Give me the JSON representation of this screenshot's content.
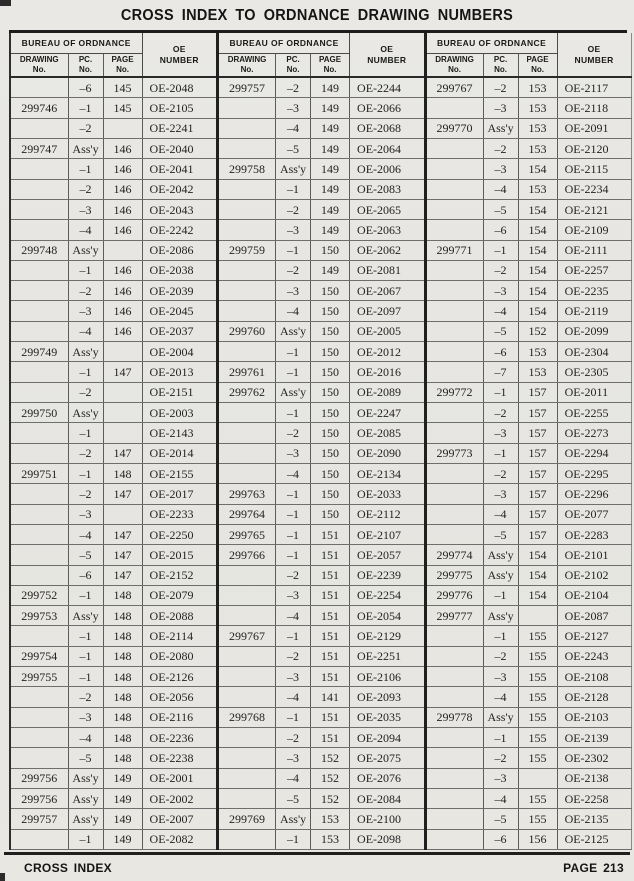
{
  "title": "CROSS INDEX TO ORDNANCE DRAWING NUMBERS",
  "footer": {
    "left": "CROSS INDEX",
    "right": "PAGE 213"
  },
  "table": {
    "headers": {
      "bureau": "BUREAU OF ORDNANCE",
      "drawing": [
        "DRAWING",
        "No."
      ],
      "pc": [
        "PC.",
        "No."
      ],
      "page": [
        "PAGE",
        "No."
      ],
      "oe": [
        "OE",
        "NUMBER"
      ]
    },
    "columns": [
      {
        "rows": [
          [
            "",
            "–6",
            "145",
            "OE-2048"
          ],
          [
            "299746",
            "–1",
            "145",
            "OE-2105"
          ],
          [
            "",
            "–2",
            "",
            "OE-2241"
          ],
          [
            "299747",
            "Ass'y",
            "146",
            "OE-2040"
          ],
          [
            "",
            "–1",
            "146",
            "OE-2041"
          ],
          [
            "",
            "–2",
            "146",
            "OE-2042"
          ],
          [
            "",
            "–3",
            "146",
            "OE-2043"
          ],
          [
            "",
            "–4",
            "146",
            "OE-2242"
          ],
          [
            "299748",
            "Ass'y",
            "",
            "OE-2086"
          ],
          [
            "",
            "–1",
            "146",
            "OE-2038"
          ],
          [
            "",
            "–2",
            "146",
            "OE-2039"
          ],
          [
            "",
            "–3",
            "146",
            "OE-2045"
          ],
          [
            "",
            "–4",
            "146",
            "OE-2037"
          ],
          [
            "299749",
            "Ass'y",
            "",
            "OE-2004"
          ],
          [
            "",
            "–1",
            "147",
            "OE-2013"
          ],
          [
            "",
            "–2",
            "",
            "OE-2151"
          ],
          [
            "299750",
            "Ass'y",
            "",
            "OE-2003"
          ],
          [
            "",
            "–1",
            "",
            "OE-2143"
          ],
          [
            "",
            "–2",
            "147",
            "OE-2014"
          ],
          [
            "299751",
            "–1",
            "148",
            "OE-2155"
          ],
          [
            "",
            "–2",
            "147",
            "OE-2017"
          ],
          [
            "",
            "–3",
            "",
            "OE-2233"
          ],
          [
            "",
            "–4",
            "147",
            "OE-2250"
          ],
          [
            "",
            "–5",
            "147",
            "OE-2015"
          ],
          [
            "",
            "–6",
            "147",
            "OE-2152"
          ],
          [
            "299752",
            "–1",
            "148",
            "OE-2079"
          ],
          [
            "299753",
            "Ass'y",
            "148",
            "OE-2088"
          ],
          [
            "",
            "–1",
            "148",
            "OE-2114"
          ],
          [
            "299754",
            "–1",
            "148",
            "OE-2080"
          ],
          [
            "299755",
            "–1",
            "148",
            "OE-2126"
          ],
          [
            "",
            "–2",
            "148",
            "OE-2056"
          ],
          [
            "",
            "–3",
            "148",
            "OE-2116"
          ],
          [
            "",
            "–4",
            "148",
            "OE-2236"
          ],
          [
            "",
            "–5",
            "148",
            "OE-2238"
          ],
          [
            "299756",
            "Ass'y",
            "149",
            "OE-2001"
          ],
          [
            "299756",
            "Ass'y",
            "149",
            "OE-2002"
          ],
          [
            "299757",
            "Ass'y",
            "149",
            "OE-2007"
          ],
          [
            "",
            "–1",
            "149",
            "OE-2082"
          ]
        ]
      },
      {
        "rows": [
          [
            "299757",
            "–2",
            "149",
            "OE-2244"
          ],
          [
            "",
            "–3",
            "149",
            "OE-2066"
          ],
          [
            "",
            "–4",
            "149",
            "OE-2068"
          ],
          [
            "",
            "–5",
            "149",
            "OE-2064"
          ],
          [
            "299758",
            "Ass'y",
            "149",
            "OE-2006"
          ],
          [
            "",
            "–1",
            "149",
            "OE-2083"
          ],
          [
            "",
            "–2",
            "149",
            "OE-2065"
          ],
          [
            "",
            "–3",
            "149",
            "OE-2063"
          ],
          [
            "299759",
            "–1",
            "150",
            "OE-2062"
          ],
          [
            "",
            "–2",
            "149",
            "OE-2081"
          ],
          [
            "",
            "–3",
            "150",
            "OE-2067"
          ],
          [
            "",
            "–4",
            "150",
            "OE-2097"
          ],
          [
            "299760",
            "Ass'y",
            "150",
            "OE-2005"
          ],
          [
            "",
            "–1",
            "150",
            "OE-2012"
          ],
          [
            "299761",
            "–1",
            "150",
            "OE-2016"
          ],
          [
            "299762",
            "Ass'y",
            "150",
            "OE-2089"
          ],
          [
            "",
            "–1",
            "150",
            "OE-2247"
          ],
          [
            "",
            "–2",
            "150",
            "OE-2085"
          ],
          [
            "",
            "–3",
            "150",
            "OE-2090"
          ],
          [
            "",
            "–4",
            "150",
            "OE-2134"
          ],
          [
            "299763",
            "–1",
            "150",
            "OE-2033"
          ],
          [
            "299764",
            "–1",
            "150",
            "OE-2112"
          ],
          [
            "299765",
            "–1",
            "151",
            "OE-2107"
          ],
          [
            "299766",
            "–1",
            "151",
            "OE-2057"
          ],
          [
            "",
            "–2",
            "151",
            "OE-2239"
          ],
          [
            "",
            "–3",
            "151",
            "OE-2254"
          ],
          [
            "",
            "–4",
            "151",
            "OE-2054"
          ],
          [
            "299767",
            "–1",
            "151",
            "OE-2129"
          ],
          [
            "",
            "–2",
            "151",
            "OE-2251"
          ],
          [
            "",
            "–3",
            "151",
            "OE-2106"
          ],
          [
            "",
            "–4",
            "141",
            "OE-2093"
          ],
          [
            "299768",
            "–1",
            "151",
            "OE-2035"
          ],
          [
            "",
            "–2",
            "151",
            "OE-2094"
          ],
          [
            "",
            "–3",
            "152",
            "OE-2075"
          ],
          [
            "",
            "–4",
            "152",
            "OE-2076"
          ],
          [
            "",
            "–5",
            "152",
            "OE-2084"
          ],
          [
            "299769",
            "Ass'y",
            "153",
            "OE-2100"
          ],
          [
            "",
            "–1",
            "153",
            "OE-2098"
          ]
        ]
      },
      {
        "rows": [
          [
            "299767",
            "–2",
            "153",
            "OE-2117"
          ],
          [
            "",
            "–3",
            "153",
            "OE-2118"
          ],
          [
            "299770",
            "Ass'y",
            "153",
            "OE-2091"
          ],
          [
            "",
            "–2",
            "153",
            "OE-2120"
          ],
          [
            "",
            "–3",
            "154",
            "OE-2115"
          ],
          [
            "",
            "–4",
            "153",
            "OE-2234"
          ],
          [
            "",
            "–5",
            "154",
            "OE-2121"
          ],
          [
            "",
            "–6",
            "154",
            "OE-2109"
          ],
          [
            "299771",
            "–1",
            "154",
            "OE-2111"
          ],
          [
            "",
            "–2",
            "154",
            "OE-2257"
          ],
          [
            "",
            "–3",
            "154",
            "OE-2235"
          ],
          [
            "",
            "–4",
            "154",
            "OE-2119"
          ],
          [
            "",
            "–5",
            "152",
            "OE-2099"
          ],
          [
            "",
            "–6",
            "153",
            "OE-2304"
          ],
          [
            "",
            "–7",
            "153",
            "OE-2305"
          ],
          [
            "299772",
            "–1",
            "157",
            "OE-2011"
          ],
          [
            "",
            "–2",
            "157",
            "OE-2255"
          ],
          [
            "",
            "–3",
            "157",
            "OE-2273"
          ],
          [
            "299773",
            "–1",
            "157",
            "OE-2294"
          ],
          [
            "",
            "–2",
            "157",
            "OE-2295"
          ],
          [
            "",
            "–3",
            "157",
            "OE-2296"
          ],
          [
            "",
            "–4",
            "157",
            "OE-2077"
          ],
          [
            "",
            "–5",
            "157",
            "OE-2283"
          ],
          [
            "299774",
            "Ass'y",
            "154",
            "OE-2101"
          ],
          [
            "299775",
            "Ass'y",
            "154",
            "OE-2102"
          ],
          [
            "299776",
            "–1",
            "154",
            "OE-2104"
          ],
          [
            "299777",
            "Ass'y",
            "",
            "OE-2087"
          ],
          [
            "",
            "–1",
            "155",
            "OE-2127"
          ],
          [
            "",
            "–2",
            "155",
            "OE-2243"
          ],
          [
            "",
            "–3",
            "155",
            "OE-2108"
          ],
          [
            "",
            "–4",
            "155",
            "OE-2128"
          ],
          [
            "299778",
            "Ass'y",
            "155",
            "OE-2103"
          ],
          [
            "",
            "–1",
            "155",
            "OE-2139"
          ],
          [
            "",
            "–2",
            "155",
            "OE-2302"
          ],
          [
            "",
            "–3",
            "",
            "OE-2138"
          ],
          [
            "",
            "–4",
            "155",
            "OE-2258"
          ],
          [
            "",
            "–5",
            "155",
            "OE-2135"
          ],
          [
            "",
            "–6",
            "156",
            "OE-2125"
          ]
        ]
      }
    ]
  }
}
